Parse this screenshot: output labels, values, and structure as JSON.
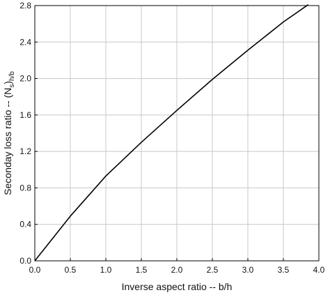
{
  "chart_data": {
    "type": "line",
    "title": "",
    "xlabel": "Inverse aspect ratio -- b/h",
    "ylabel": {
      "main": "Seconday loss ratio -- (N",
      "sub1": "s",
      "mid": ")",
      "sub2": "h/b"
    },
    "xlim": [
      0,
      4
    ],
    "ylim": [
      0,
      2.8
    ],
    "x_ticks": [
      "0.0",
      "0.5",
      "1.0",
      "1.5",
      "2.0",
      "2.5",
      "3.0",
      "3.5",
      "4.0"
    ],
    "y_ticks": [
      "0.0",
      "0.4",
      "0.8",
      "1.2",
      "1.6",
      "2.0",
      "2.4",
      "2.8"
    ],
    "grid": true,
    "series": [
      {
        "x": [
          0,
          0.5,
          1.0,
          1.5,
          2.0,
          2.5,
          3.0,
          3.5,
          3.85
        ],
        "y": [
          0,
          0.49,
          0.93,
          1.3,
          1.65,
          1.99,
          2.31,
          2.62,
          2.81
        ],
        "color": "#000000"
      }
    ]
  }
}
